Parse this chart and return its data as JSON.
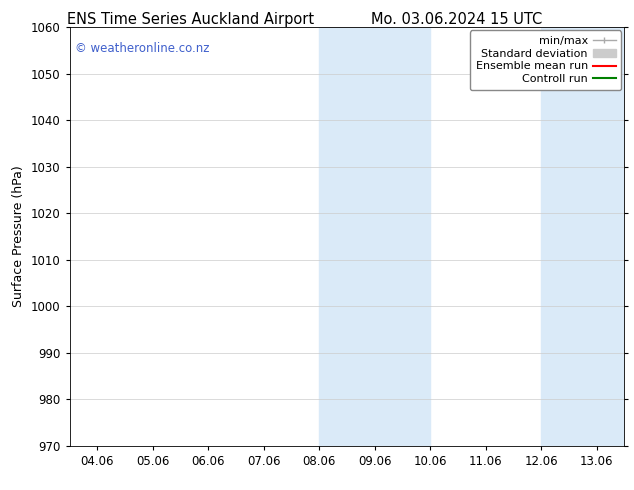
{
  "title_left": "ENS Time Series Auckland Airport",
  "title_right": "Mo. 03.06.2024 15 UTC",
  "ylabel": "Surface Pressure (hPa)",
  "ylim": [
    970,
    1060
  ],
  "yticks": [
    970,
    980,
    990,
    1000,
    1010,
    1020,
    1030,
    1040,
    1050,
    1060
  ],
  "xlabels": [
    "04.06",
    "05.06",
    "06.06",
    "07.06",
    "08.06",
    "09.06",
    "10.06",
    "11.06",
    "12.06",
    "13.06"
  ],
  "xvalues": [
    0,
    1,
    2,
    3,
    4,
    5,
    6,
    7,
    8,
    9
  ],
  "xlim": [
    -0.5,
    9.5
  ],
  "shaded_bands": [
    {
      "xmin": 4.0,
      "xmax": 6.0
    },
    {
      "xmin": 8.0,
      "xmax": 9.5
    }
  ],
  "shaded_color": "#daeaf8",
  "watermark": "© weatheronline.co.nz",
  "watermark_color": "#4060cc",
  "legend_entries": [
    {
      "label": "min/max",
      "color": "#aaaaaa",
      "lw": 1.0,
      "style": "minmax"
    },
    {
      "label": "Standard deviation",
      "color": "#cccccc",
      "lw": 6,
      "style": "band"
    },
    {
      "label": "Ensemble mean run",
      "color": "#ff0000",
      "lw": 1.5,
      "style": "line"
    },
    {
      "label": "Controll run",
      "color": "#008000",
      "lw": 1.5,
      "style": "line"
    }
  ],
  "background_color": "#ffffff",
  "grid_color": "#cccccc",
  "title_fontsize": 10.5,
  "label_fontsize": 9,
  "tick_fontsize": 8.5,
  "watermark_fontsize": 8.5,
  "legend_fontsize": 8.0
}
